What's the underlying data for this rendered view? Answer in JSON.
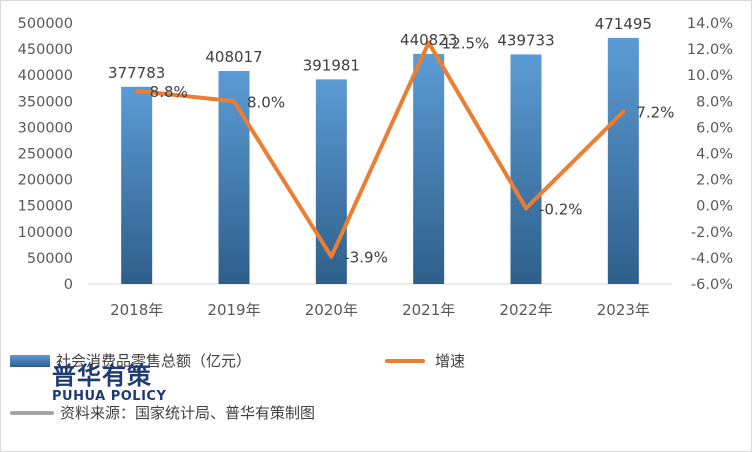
{
  "chart_data": {
    "type": "bar",
    "categories": [
      "2018年",
      "2019年",
      "2020年",
      "2021年",
      "2022年",
      "2023年"
    ],
    "series": [
      {
        "name": "社会消费品零售总额（亿元）",
        "type": "bar",
        "axis": "left",
        "values": [
          377783,
          408017,
          391981,
          440823,
          439733,
          471495
        ],
        "labels": [
          "377783",
          "408017",
          "391981",
          "440823",
          "439733",
          "471495"
        ],
        "color": "#5b9bd5"
      },
      {
        "name": "增速",
        "type": "line",
        "axis": "right",
        "values": [
          8.8,
          8.0,
          -3.9,
          12.5,
          -0.2,
          7.2
        ],
        "labels": [
          "8.8%",
          "8.0%",
          "-3.9%",
          "12.5%",
          "-0.2%",
          "7.2%"
        ],
        "color": "#ed7d31"
      }
    ],
    "ylim_left": [
      0,
      500000
    ],
    "yticks_left": [
      "0",
      "50000",
      "100000",
      "150000",
      "200000",
      "250000",
      "300000",
      "350000",
      "400000",
      "450000",
      "500000"
    ],
    "ylim_right": [
      -6.0,
      14.0
    ],
    "yticks_right": [
      "-6.0%",
      "-4.0%",
      "-2.0%",
      "0.0%",
      "2.0%",
      "4.0%",
      "6.0%",
      "8.0%",
      "10.0%",
      "12.0%",
      "14.0%"
    ],
    "grid": false,
    "legend_position": "bottom"
  },
  "legend": {
    "bar_label": "社会消费品零售总额（亿元）",
    "line_label": "增速"
  },
  "watermark": {
    "cn": "普华有策",
    "en": "PUHUA POLICY"
  },
  "source": "资料来源：国家统计局、普华有策制图",
  "colors": {
    "bar_top": "#5b9bd5",
    "bar_bottom": "#2e5f8a",
    "line": "#ed7d31",
    "axis_text": "#595959",
    "label_text": "#404040"
  }
}
